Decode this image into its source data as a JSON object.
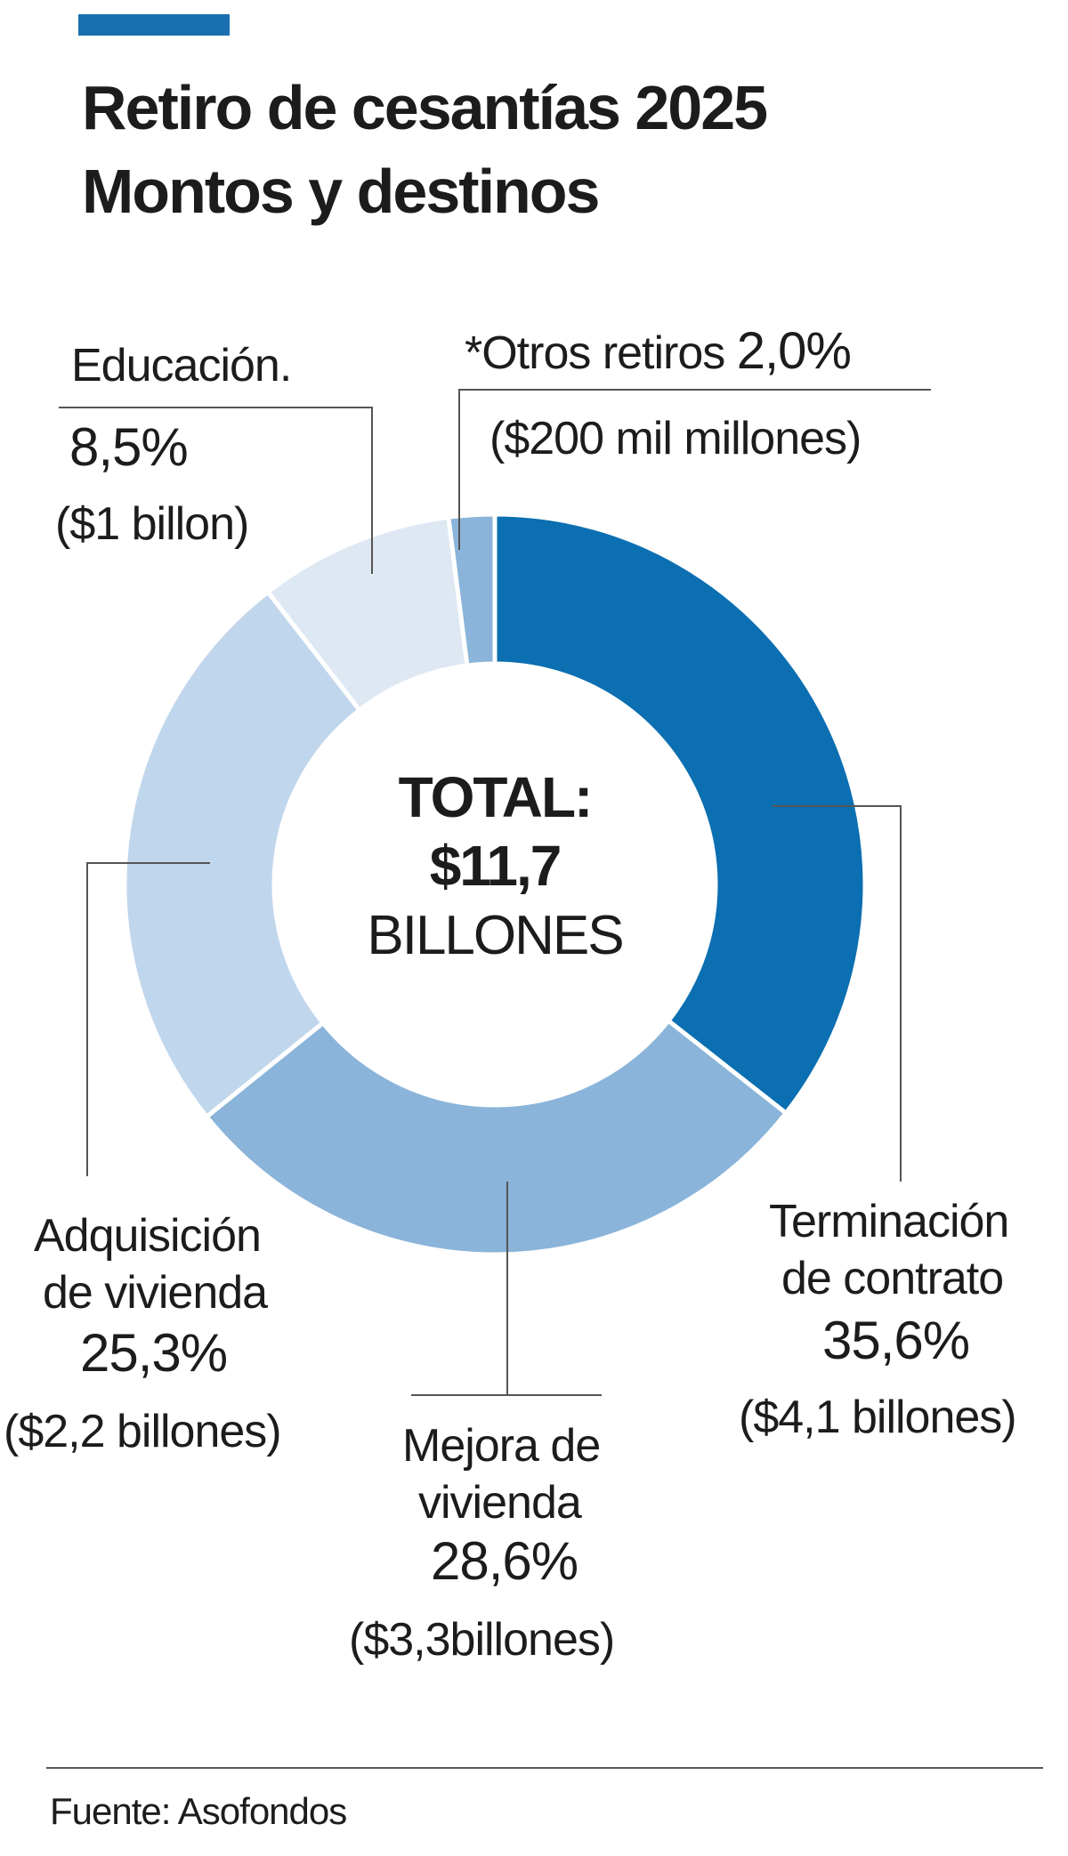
{
  "header": {
    "title_line1": "Retiro de cesantías 2025",
    "title_line2": "Montos y destinos"
  },
  "center": {
    "line1": "TOTAL:",
    "line2": "$11,7",
    "line3": "BILLONES"
  },
  "labels": {
    "educacion": {
      "name": "Educación.",
      "pct": "8,5%",
      "amount": "($1 billon)"
    },
    "otros": {
      "prefix": "*Otros retiros",
      "pct": "2,0%",
      "amount": "($200 mil millones)"
    },
    "adquisicion": {
      "name1": "Adquisición",
      "name2": "de vivienda",
      "pct": "25,3%",
      "amount": "($2,2 billones)"
    },
    "mejora": {
      "name1": "Mejora de",
      "name2": "vivienda",
      "pct": "28,6%",
      "amount": "($3,3billones)"
    },
    "terminacion": {
      "name1": "Terminación",
      "name2": "de contrato",
      "pct": "35,6%",
      "amount": "($4,1 billones)"
    }
  },
  "footer": {
    "source": "Fuente: Asofondos"
  },
  "colors": {
    "accent": "#1a6fb0",
    "terminacion": "#0b6fb1",
    "mejora": "#8ab4d9",
    "adquisicion": "#c0d6ec",
    "educacion": "#dde8f3",
    "otros": "#8ab4d9",
    "leader": "#555555"
  },
  "chart_data": {
    "type": "pie",
    "title": "Retiro de cesantías 2025 Montos y destinos",
    "center_text": "TOTAL: $11,7 BILLONES",
    "slices": [
      {
        "name": "Terminación de contrato",
        "value": 35.6,
        "amount": "($4,1 billones)"
      },
      {
        "name": "Mejora de vivienda",
        "value": 28.6,
        "amount": "($3,3billones)"
      },
      {
        "name": "Adquisición de vivienda",
        "value": 25.3,
        "amount": "($2,2 billones)"
      },
      {
        "name": "Educación.",
        "value": 8.5,
        "amount": "($1 billon)"
      },
      {
        "name": "*Otros retiros",
        "value": 2.0,
        "amount": "($200 mil millones)"
      }
    ]
  }
}
